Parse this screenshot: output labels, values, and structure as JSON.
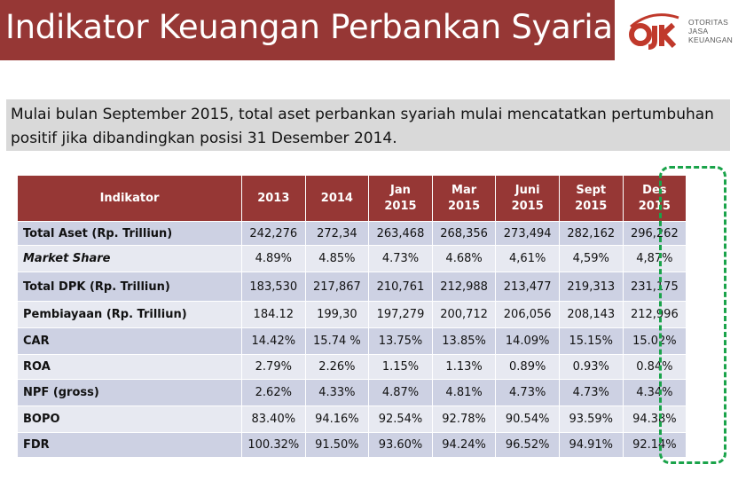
{
  "header": {
    "title": "Indikator Keuangan Perbankan Syariah",
    "title_bar_color": "#963735",
    "logo": {
      "mark_text": "OJK",
      "lines": [
        "OTORITAS",
        "JASA",
        "KEUANGAN"
      ]
    }
  },
  "intro": {
    "line1": "Mulai bulan September 2015, total aset perbankan syariah mulai mencatatkan pertumbuhan",
    "line2": "positif jika dibandingkan posisi 31 Desember 2014."
  },
  "table": {
    "header_indikator": "Indikator",
    "columns": [
      {
        "l1": "2013",
        "l2": ""
      },
      {
        "l1": "2014",
        "l2": ""
      },
      {
        "l1": "Jan",
        "l2": "2015"
      },
      {
        "l1": "Mar",
        "l2": "2015"
      },
      {
        "l1": "Juni",
        "l2": "2015"
      },
      {
        "l1": "Sept",
        "l2": "2015"
      },
      {
        "l1": "Des",
        "l2": "2015"
      }
    ],
    "rows": [
      {
        "label": "Total Aset (Rp. Trilliun)",
        "values": [
          "242,276",
          "272,34",
          "263,468",
          "268,356",
          "273,494",
          "282,162",
          "296,262"
        ]
      },
      {
        "label": "Market Share",
        "values": [
          "4.89%",
          "4.85%",
          "4.73%",
          "4.68%",
          "4,61%",
          "4,59%",
          "4,87%"
        ]
      },
      {
        "label": "Total DPK (Rp. Trilliun)",
        "values": [
          "183,530",
          "217,867",
          "210,761",
          "212,988",
          "213,477",
          "219,313",
          "231,175"
        ]
      },
      {
        "label": "Pembiayaan (Rp. Trilliun)",
        "values": [
          "184.12",
          "199,30",
          "197,279",
          "200,712",
          "206,056",
          "208,143",
          "212,996"
        ]
      },
      {
        "label": "CAR",
        "values": [
          "14.42%",
          "15.74 %",
          "13.75%",
          "13.85%",
          "14.09%",
          "15.15%",
          "15.02%"
        ]
      },
      {
        "label": "ROA",
        "values": [
          "2.79%",
          "2.26%",
          "1.15%",
          "1.13%",
          "0.89%",
          "0.93%",
          "0.84%"
        ]
      },
      {
        "label": "NPF (gross)",
        "values": [
          "2.62%",
          "4.33%",
          "4.87%",
          "4.81%",
          "4.73%",
          "4.73%",
          "4.34%"
        ]
      },
      {
        "label": "BOPO",
        "values": [
          "83.40%",
          "94.16%",
          "92.54%",
          "92.78%",
          "90.54%",
          "93.59%",
          "94.38%"
        ]
      },
      {
        "label": "FDR",
        "values": [
          "100.32%",
          "91.50%",
          "93.60%",
          "94.24%",
          "96.52%",
          "94.91%",
          "92.14%"
        ]
      }
    ]
  },
  "colors": {
    "header_red": "#963735",
    "row_dark": "#cdd1e3",
    "row_light": "#e7e9f1",
    "highlight_green": "#1aa34a"
  }
}
